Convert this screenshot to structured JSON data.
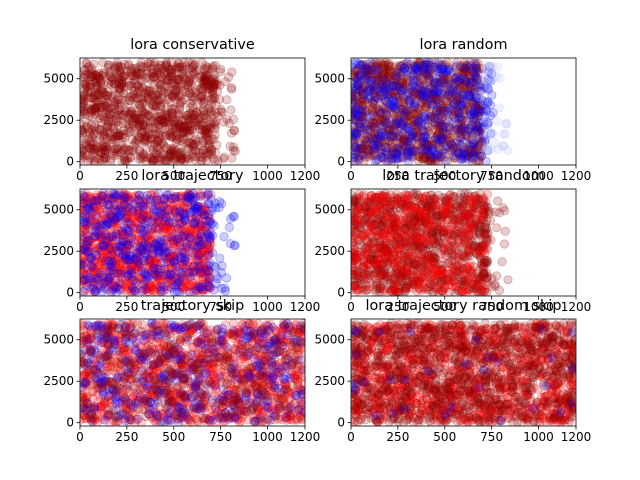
{
  "colors": {
    "dark_red": "#8b0000",
    "red": "#ff0000",
    "blue": "#0000ff",
    "pale_blue": "#aeb8ff",
    "pale_red": "#f08080"
  },
  "chart_data": [
    {
      "type": "scatter",
      "title": "lora conservative",
      "xlim": [
        0,
        1200
      ],
      "ylim": [
        -200,
        6250
      ],
      "xticks": [
        "0",
        "250",
        "500",
        "750",
        "1000",
        "1200"
      ],
      "yticks": [
        "0",
        "2500",
        "5000"
      ],
      "marker": "o",
      "alpha": 0.2,
      "series": [
        {
          "name": "",
          "color": "#8b0000",
          "x_range": [
            0,
            730
          ],
          "y_range": [
            0,
            6000
          ],
          "density": "dense"
        },
        {
          "name": "",
          "color": "#8b0000",
          "x_range": [
            730,
            830
          ],
          "y_range": [
            0,
            5800
          ],
          "density": "sparse"
        }
      ]
    },
    {
      "type": "scatter",
      "title": "lora random",
      "xlim": [
        0,
        1200
      ],
      "ylim": [
        -200,
        6250
      ],
      "xticks": [
        "0",
        "250",
        "500",
        "750",
        "1000",
        "1200"
      ],
      "yticks": [
        "0",
        "2500",
        "5000"
      ],
      "marker": "o",
      "alpha": 0.2,
      "series": [
        {
          "name": "",
          "color": "#8b0000",
          "x_range": [
            0,
            700
          ],
          "y_range": [
            0,
            6000
          ],
          "density": "dense"
        },
        {
          "name": "",
          "color": "#0000ff",
          "x_range": [
            0,
            760
          ],
          "y_range": [
            0,
            6000
          ],
          "density": "medium"
        },
        {
          "name": "",
          "color": "#aeb8ff",
          "x_range": [
            650,
            840
          ],
          "y_range": [
            0,
            5800
          ],
          "density": "sparse"
        }
      ]
    },
    {
      "type": "scatter",
      "title": "lora trajectory",
      "xlim": [
        0,
        1200
      ],
      "ylim": [
        -200,
        6250
      ],
      "xticks": [
        "0",
        "250",
        "500",
        "750",
        "1000",
        "1200"
      ],
      "yticks": [
        "0",
        "2500",
        "5000"
      ],
      "marker": "o",
      "alpha": 0.2,
      "series": [
        {
          "name": "",
          "color": "#ff0000",
          "x_range": [
            0,
            700
          ],
          "y_range": [
            0,
            6000
          ],
          "density": "dense"
        },
        {
          "name": "",
          "color": "#0000ff",
          "x_range": [
            0,
            700
          ],
          "y_range": [
            0,
            6000
          ],
          "density": "medium"
        },
        {
          "name": "",
          "color": "#0000ff",
          "x_range": [
            700,
            830
          ],
          "y_range": [
            0,
            5800
          ],
          "density": "sparse"
        }
      ]
    },
    {
      "type": "scatter",
      "title": "lora trajectory random",
      "xlim": [
        0,
        1200
      ],
      "ylim": [
        -200,
        6250
      ],
      "xticks": [
        "0",
        "250",
        "500",
        "750",
        "1000",
        "1200"
      ],
      "yticks": [
        "0",
        "2500",
        "5000"
      ],
      "marker": "o",
      "alpha": 0.2,
      "series": [
        {
          "name": "",
          "color": "#8b0000",
          "x_range": [
            0,
            730
          ],
          "y_range": [
            0,
            6000
          ],
          "density": "dense"
        },
        {
          "name": "",
          "color": "#ff0000",
          "x_range": [
            0,
            730
          ],
          "y_range": [
            0,
            6000
          ],
          "density": "medium"
        },
        {
          "name": "",
          "color": "#8b0000",
          "x_range": [
            680,
            840
          ],
          "y_range": [
            0,
            5800
          ],
          "density": "sparse"
        }
      ]
    },
    {
      "type": "scatter",
      "title": "trajectory skip",
      "xlim": [
        0,
        1200
      ],
      "ylim": [
        -200,
        6250
      ],
      "xticks": [
        "0",
        "250",
        "500",
        "750",
        "1000",
        "1200"
      ],
      "yticks": [
        "0",
        "2500",
        "5000"
      ],
      "marker": "o",
      "alpha": 0.2,
      "series": [
        {
          "name": "",
          "color": "#ff0000",
          "x_range": [
            0,
            1200
          ],
          "y_range": [
            0,
            6000
          ],
          "density": "dense"
        },
        {
          "name": "",
          "color": "#0000ff",
          "x_range": [
            0,
            1200
          ],
          "y_range": [
            0,
            6000
          ],
          "density": "medium"
        },
        {
          "name": "",
          "color": "#8b0000",
          "x_range": [
            0,
            1200
          ],
          "y_range": [
            0,
            6000
          ],
          "density": "medium"
        }
      ]
    },
    {
      "type": "scatter",
      "title": "lora trajectory random skip",
      "xlim": [
        0,
        1200
      ],
      "ylim": [
        -200,
        6250
      ],
      "xticks": [
        "0",
        "250",
        "500",
        "750",
        "1000",
        "1200"
      ],
      "yticks": [
        "0",
        "2500",
        "5000"
      ],
      "marker": "o",
      "alpha": 0.2,
      "series": [
        {
          "name": "",
          "color": "#ff0000",
          "x_range": [
            0,
            1200
          ],
          "y_range": [
            0,
            6000
          ],
          "density": "dense"
        },
        {
          "name": "",
          "color": "#8b0000",
          "x_range": [
            0,
            1200
          ],
          "y_range": [
            0,
            6000
          ],
          "density": "dense"
        },
        {
          "name": "",
          "color": "#0000ff",
          "x_range": [
            0,
            1200
          ],
          "y_range": [
            0,
            6000
          ],
          "density": "sparse"
        }
      ]
    }
  ]
}
